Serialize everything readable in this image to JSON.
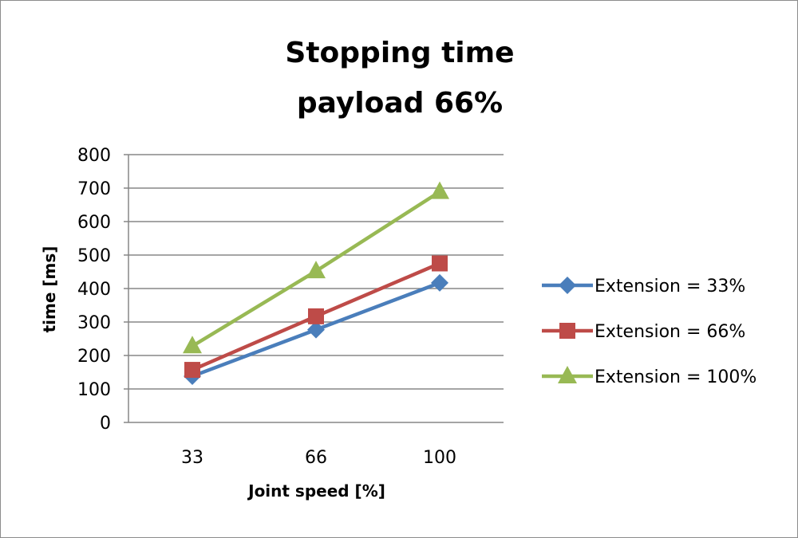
{
  "chart_data": {
    "type": "line",
    "title": [
      "Stopping time",
      "payload 66%"
    ],
    "xlabel": "Joint speed [%]",
    "ylabel": "time [ms]",
    "categories": [
      "33",
      "66",
      "100"
    ],
    "ylim": [
      0,
      800
    ],
    "yticks": [
      0,
      100,
      200,
      300,
      400,
      500,
      600,
      700,
      800
    ],
    "grid": true,
    "legend_position": "right",
    "series": [
      {
        "name": "Extension = 33%",
        "values": [
          138,
          277,
          417
        ],
        "color": "#4a7ebb",
        "marker": "diamond"
      },
      {
        "name": "Extension = 66%",
        "values": [
          157,
          317,
          475
        ],
        "color": "#be4b48",
        "marker": "square"
      },
      {
        "name": "Extension = 100%",
        "values": [
          228,
          452,
          689
        ],
        "color": "#98b954",
        "marker": "triangle"
      }
    ]
  }
}
